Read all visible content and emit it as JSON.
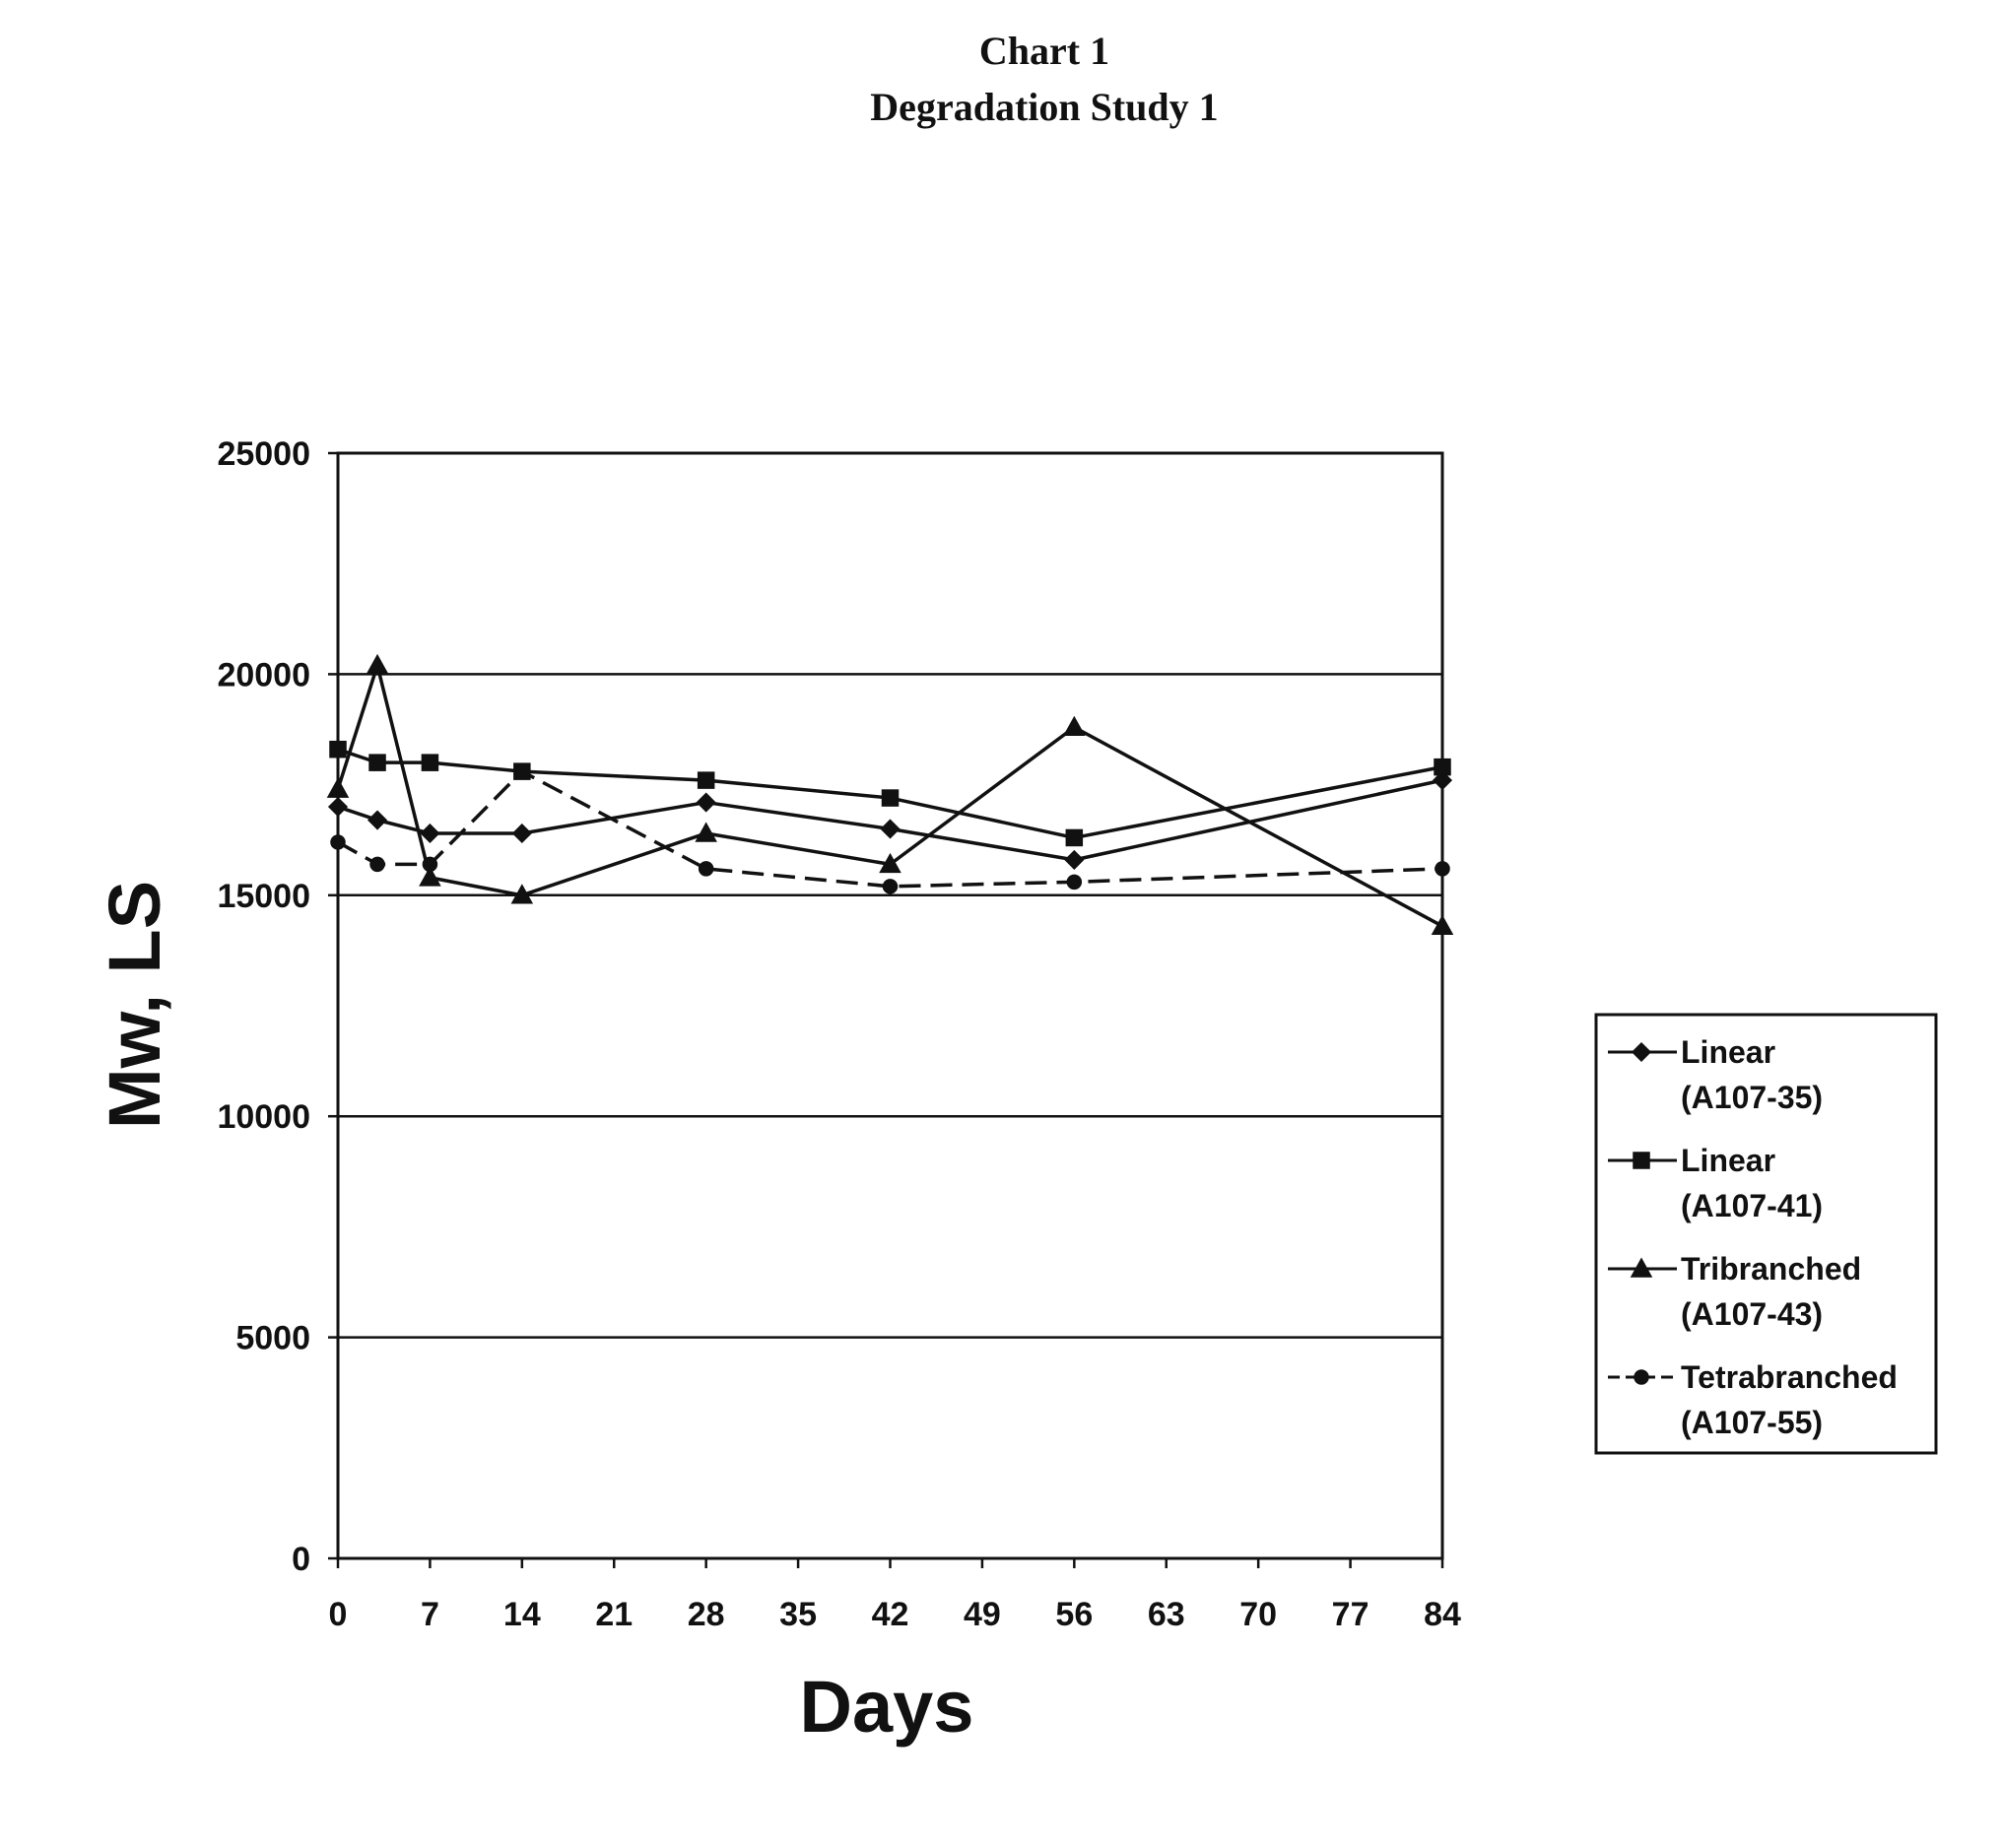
{
  "chart_data": {
    "type": "line",
    "title": "Chart 1",
    "subtitle": "Degradation Study 1",
    "xlabel": "Days",
    "ylabel": "Mw, LS",
    "xlim": [
      0,
      84
    ],
    "ylim": [
      0,
      25000
    ],
    "x_ticks": [
      "0",
      "7",
      "14",
      "21",
      "28",
      "35",
      "42",
      "49",
      "56",
      "63",
      "70",
      "77",
      "84"
    ],
    "y_ticks": [
      "25000",
      "20000",
      "15000",
      "10000",
      "5000",
      "0"
    ],
    "grid": "horizontal",
    "legend_position": "right",
    "series": [
      {
        "name": "Linear (A107-35)",
        "legend_lines": [
          "Linear",
          "(A107-35)"
        ],
        "marker": "diamond",
        "dash": "solid",
        "x": [
          0,
          3,
          7,
          14,
          28,
          42,
          56,
          84
        ],
        "y": [
          17000,
          16700,
          16400,
          16400,
          17100,
          16500,
          15800,
          17600
        ]
      },
      {
        "name": "Linear (A107-41)",
        "legend_lines": [
          "Linear",
          "(A107-41)"
        ],
        "marker": "square",
        "dash": "solid",
        "x": [
          0,
          3,
          7,
          14,
          28,
          42,
          56,
          84
        ],
        "y": [
          18300,
          18000,
          18000,
          17800,
          17600,
          17200,
          16300,
          17900
        ]
      },
      {
        "name": "Tribranched (A107-43)",
        "legend_lines": [
          "Tribranched",
          "(A107-43)"
        ],
        "marker": "triangle",
        "dash": "solid",
        "x": [
          0,
          3,
          7,
          14,
          28,
          42,
          56,
          84
        ],
        "y": [
          17400,
          20200,
          15400,
          15000,
          16400,
          15700,
          18800,
          14300
        ]
      },
      {
        "name": "Tetrabranched (A107-55)",
        "legend_lines": [
          "Tetrabranched",
          "(A107-55)"
        ],
        "marker": "circle",
        "dash": "dashed",
        "x": [
          0,
          3,
          7,
          14,
          28,
          42,
          56,
          84
        ],
        "y": [
          16200,
          15700,
          15700,
          17800,
          15600,
          15200,
          15300,
          15600
        ]
      }
    ]
  },
  "colors": {
    "ink": "#111111",
    "background": "#ffffff"
  }
}
